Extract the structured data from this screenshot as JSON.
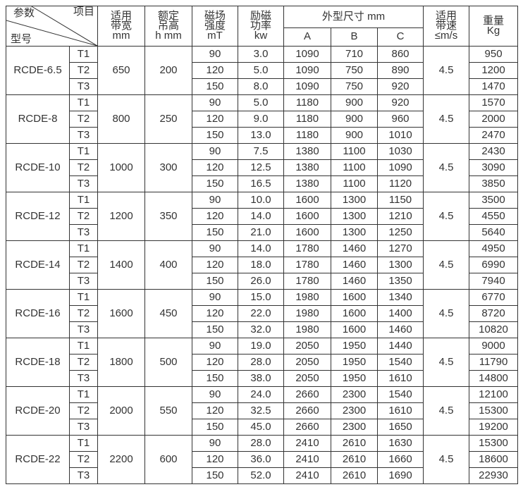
{
  "header": {
    "param": "参数",
    "item": "项目",
    "model": "型号",
    "width": [
      "适用",
      "带宽",
      "mm"
    ],
    "height": [
      "额定",
      "吊高",
      "h mm"
    ],
    "field": [
      "磁场",
      "强度",
      "mT"
    ],
    "power": [
      "励磁",
      "功率",
      "kw"
    ],
    "dims": "外型尺寸 mm",
    "A": "A",
    "B": "B",
    "C": "C",
    "speed": [
      "适用",
      "带速",
      "≤m/s"
    ],
    "weight": [
      "重量",
      "Kg"
    ]
  },
  "models": [
    {
      "name": "RCDE-6.5",
      "width": "650",
      "height": "200",
      "speed": "4.5",
      "rows": [
        [
          "T1",
          "90",
          "3.0",
          "1090",
          "710",
          "860",
          "950"
        ],
        [
          "T2",
          "120",
          "5.0",
          "1090",
          "750",
          "890",
          "1200"
        ],
        [
          "T3",
          "150",
          "8.0",
          "1090",
          "750",
          "920",
          "1470"
        ]
      ]
    },
    {
      "name": "RCDE-8",
      "width": "800",
      "height": "250",
      "speed": "4.5",
      "rows": [
        [
          "T1",
          "90",
          "5.0",
          "1180",
          "900",
          "920",
          "1570"
        ],
        [
          "T2",
          "120",
          "9.0",
          "1180",
          "900",
          "960",
          "2000"
        ],
        [
          "T3",
          "150",
          "13.0",
          "1180",
          "900",
          "1010",
          "2470"
        ]
      ]
    },
    {
      "name": "RCDE-10",
      "width": "1000",
      "height": "300",
      "speed": "4.5",
      "rows": [
        [
          "T1",
          "90",
          "7.5",
          "1380",
          "1100",
          "1030",
          "2430"
        ],
        [
          "T2",
          "120",
          "12.5",
          "1380",
          "1100",
          "1090",
          "3090"
        ],
        [
          "T3",
          "150",
          "16.5",
          "1380",
          "1100",
          "1120",
          "3850"
        ]
      ]
    },
    {
      "name": "RCDE-12",
      "width": "1200",
      "height": "350",
      "speed": "4.5",
      "rows": [
        [
          "T1",
          "90",
          "10.0",
          "1600",
          "1300",
          "1150",
          "3500"
        ],
        [
          "T2",
          "120",
          "14.0",
          "1600",
          "1300",
          "1210",
          "4550"
        ],
        [
          "T3",
          "150",
          "21.0",
          "1600",
          "1300",
          "1250",
          "5640"
        ]
      ]
    },
    {
      "name": "RCDE-14",
      "width": "1400",
      "height": "400",
      "speed": "4.5",
      "rows": [
        [
          "T1",
          "90",
          "14.0",
          "1780",
          "1460",
          "1270",
          "4950"
        ],
        [
          "T2",
          "120",
          "18.0",
          "1780",
          "1460",
          "1300",
          "6990"
        ],
        [
          "T3",
          "150",
          "26.0",
          "1780",
          "1460",
          "1350",
          "7940"
        ]
      ]
    },
    {
      "name": "RCDE-16",
      "width": "1600",
      "height": "450",
      "speed": "4.5",
      "rows": [
        [
          "T1",
          "90",
          "15.0",
          "1980",
          "1600",
          "1340",
          "6770"
        ],
        [
          "T2",
          "120",
          "22.0",
          "1980",
          "1600",
          "1400",
          "8720"
        ],
        [
          "T3",
          "150",
          "32.0",
          "1980",
          "1600",
          "1460",
          "10820"
        ]
      ]
    },
    {
      "name": "RCDE-18",
      "width": "1800",
      "height": "500",
      "speed": "4.5",
      "rows": [
        [
          "T1",
          "90",
          "19.0",
          "2050",
          "1950",
          "1440",
          "9000"
        ],
        [
          "T2",
          "120",
          "28.0",
          "2050",
          "1950",
          "1540",
          "11790"
        ],
        [
          "T3",
          "150",
          "38.0",
          "2050",
          "1950",
          "1610",
          "14800"
        ]
      ]
    },
    {
      "name": "RCDE-20",
      "width": "2000",
      "height": "550",
      "speed": "4.5",
      "rows": [
        [
          "T1",
          "90",
          "24.0",
          "2660",
          "2300",
          "1540",
          "12100"
        ],
        [
          "T2",
          "120",
          "32.5",
          "2660",
          "2300",
          "1610",
          "15300"
        ],
        [
          "T3",
          "150",
          "45.0",
          "2660",
          "2300",
          "1650",
          "19200"
        ]
      ]
    },
    {
      "name": "RCDE-22",
      "width": "2200",
      "height": "600",
      "speed": "4.5",
      "rows": [
        [
          "T1",
          "90",
          "28.0",
          "2410",
          "2610",
          "1630",
          "15300"
        ],
        [
          "T2",
          "120",
          "36.0",
          "2410",
          "2610",
          "1660",
          "18600"
        ],
        [
          "T3",
          "150",
          "52.0",
          "2410",
          "2610",
          "1690",
          "22930"
        ]
      ]
    }
  ]
}
